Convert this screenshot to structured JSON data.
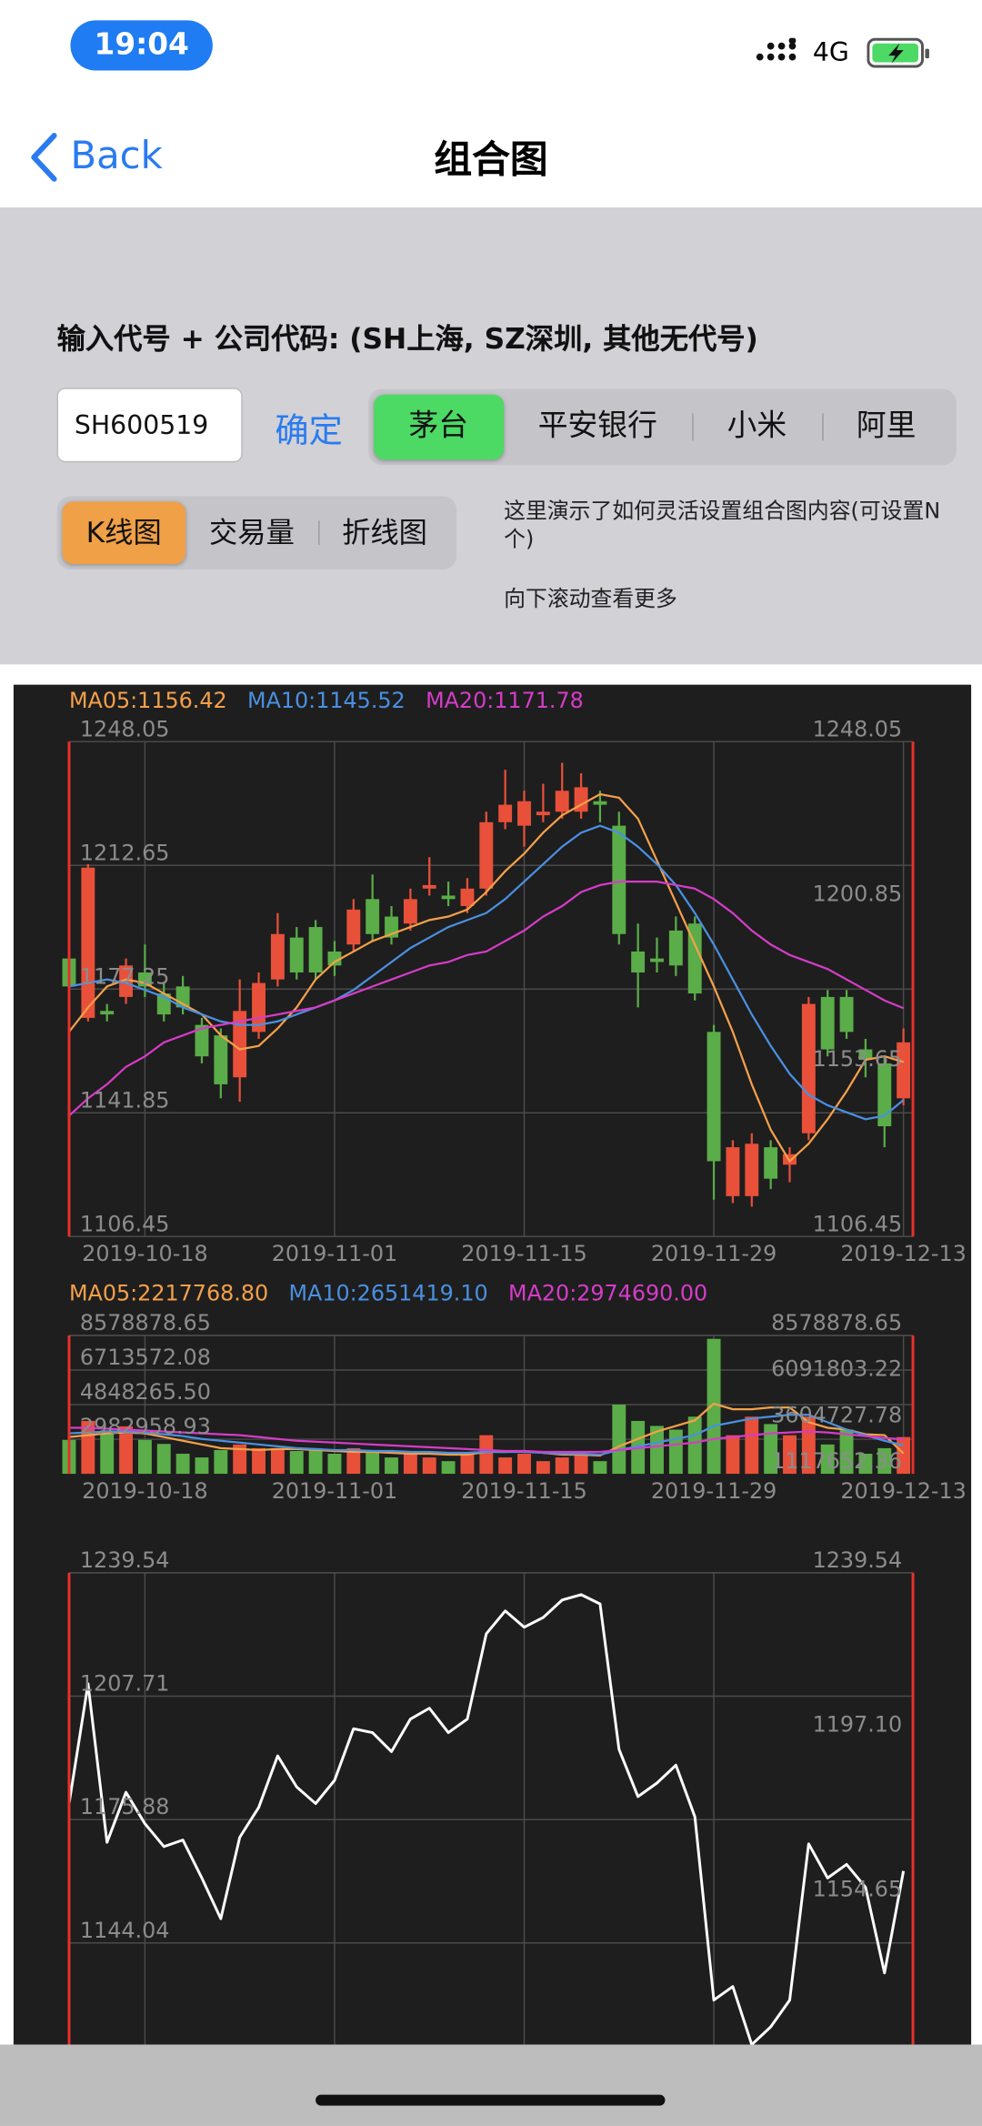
{
  "ui": {
    "status_bar": {
      "time": "19:04",
      "network": "4G"
    },
    "nav": {
      "back": "Back",
      "title": "组合图"
    },
    "prompt": "输入代号 + 公司代码: (SH上海, SZ深圳, 其他无代号)",
    "input": "SH600519",
    "confirm": "确定",
    "stocks": [
      "茅台",
      "平安银行",
      "小米",
      "阿里"
    ],
    "selected_stock": 0,
    "selected_stock_color": "#4cd964",
    "views": [
      "K线图",
      "交易量",
      "折线图"
    ],
    "selected_view": 0,
    "selected_view_color": "#f0a046",
    "note": "这里演示了如何灵活设置组合图内容(可设置N个)",
    "more": "向下滚动查看更多"
  },
  "chart_data": [
    {
      "type": "candlestick",
      "up_color": "#e8503a",
      "down_color": "#5aad48",
      "grid": true,
      "x": [
        null,
        null,
        null,
        null,
        "2019-10-18",
        null,
        null,
        null,
        null,
        null,
        null,
        null,
        null,
        null,
        "2019-11-01",
        null,
        null,
        null,
        null,
        null,
        null,
        null,
        null,
        null,
        "2019-11-15",
        null,
        null,
        null,
        null,
        null,
        null,
        null,
        null,
        null,
        "2019-11-29",
        null,
        null,
        null,
        null,
        null,
        null,
        null,
        null,
        null,
        "2019-12-13"
      ],
      "open": [
        1186,
        1169,
        1171,
        1175,
        1182,
        1176,
        1178,
        1167,
        1164,
        1152,
        1165,
        1180,
        1192,
        1195,
        1188,
        1190,
        1203,
        1198,
        1196,
        1206,
        1204,
        1201,
        1206,
        1225,
        1224,
        1227,
        1228,
        1228,
        1231,
        1224,
        1188,
        1186,
        1194,
        1196,
        1165,
        1118,
        1118,
        1132,
        1127,
        1136,
        1175,
        1175,
        1160,
        1156,
        1146
      ],
      "high": [
        1189,
        1213,
        1173,
        1186,
        1190,
        1179,
        1181,
        1169,
        1166,
        1180,
        1182,
        1199,
        1195,
        1197,
        1191,
        1203,
        1210,
        1201,
        1206,
        1215,
        1208,
        1209,
        1228,
        1240,
        1234,
        1236,
        1242,
        1239,
        1234,
        1228,
        1196,
        1192,
        1198,
        1198,
        1167,
        1134,
        1136,
        1134,
        1132,
        1175,
        1177,
        1177,
        1163,
        1158,
        1166
      ],
      "low": [
        1176,
        1168,
        1168,
        1173,
        1175,
        1168,
        1170,
        1156,
        1146,
        1145,
        1163,
        1178,
        1180,
        1180,
        1181,
        1188,
        1191,
        1190,
        1194,
        1204,
        1201,
        1199,
        1204,
        1223,
        1218,
        1225,
        1226,
        1226,
        1225,
        1190,
        1172,
        1182,
        1181,
        1174,
        1117,
        1116,
        1115,
        1120,
        1122,
        1134,
        1158,
        1163,
        1152,
        1132,
        1144
      ],
      "close": [
        1178,
        1212,
        1170,
        1184,
        1178,
        1170,
        1172,
        1158,
        1150,
        1171,
        1179,
        1193,
        1182,
        1182,
        1184,
        1200,
        1193,
        1192,
        1203,
        1207,
        1203,
        1206,
        1225,
        1230,
        1231,
        1228,
        1234,
        1235,
        1230,
        1193,
        1182,
        1185,
        1184,
        1176,
        1128,
        1132,
        1133,
        1123,
        1130,
        1173,
        1160,
        1165,
        1157,
        1138,
        1162
      ],
      "series": [
        {
          "name": "MA05:1156.42",
          "color": "#f5a04a",
          "values": [
            1165,
            1172,
            1178,
            1180,
            1179,
            1176,
            1173,
            1170,
            1164,
            1160,
            1161,
            1166,
            1172,
            1180,
            1185,
            1188,
            1191,
            1193,
            1195,
            1197,
            1198,
            1200,
            1205,
            1211,
            1216,
            1222,
            1227,
            1230,
            1233,
            1232,
            1226,
            1214,
            1202,
            1190,
            1178,
            1165,
            1150,
            1137,
            1128,
            1133,
            1140,
            1148,
            1157,
            1158,
            1156.42
          ]
        },
        {
          "name": "MA10:1145.52",
          "color": "#4a90e2",
          "values": [
            1178,
            1179,
            1180,
            1179,
            1177,
            1175,
            1172,
            1170,
            1168,
            1167,
            1167,
            1168,
            1170,
            1172,
            1174,
            1177,
            1181,
            1185,
            1189,
            1192,
            1195,
            1197,
            1199,
            1203,
            1208,
            1213,
            1218,
            1222,
            1224,
            1222,
            1218,
            1213,
            1207,
            1199,
            1190,
            1180,
            1170,
            1161,
            1153,
            1147,
            1144,
            1142,
            1140,
            1141,
            1145.52
          ]
        },
        {
          "name": "MA20:1171.78",
          "color": "#d63cc8",
          "values": [
            1141,
            1146,
            1150,
            1155,
            1158,
            1162,
            1164,
            1166,
            1167,
            1168,
            1169,
            1170,
            1171,
            1172,
            1174,
            1176,
            1178,
            1180,
            1182,
            1184,
            1185,
            1187,
            1188,
            1191,
            1194,
            1198,
            1201,
            1205,
            1207,
            1208,
            1208,
            1208,
            1207,
            1206,
            1203,
            1199,
            1194,
            1190,
            1187,
            1185,
            1183,
            1180,
            1177,
            1174,
            1171.78
          ]
        }
      ],
      "ylim": [
        1106.45,
        1248.05
      ],
      "yticks": [
        1106.45,
        1141.85,
        1177.25,
        1212.65,
        1248.05
      ],
      "y2lim": [
        1106.45,
        1248.05
      ],
      "y2ticks": [
        1106.45,
        1153.65,
        1200.85,
        1248.05
      ]
    },
    {
      "type": "bar",
      "grid": true,
      "x": [
        null,
        null,
        null,
        null,
        "2019-10-18",
        null,
        null,
        null,
        null,
        null,
        null,
        null,
        null,
        null,
        "2019-11-01",
        null,
        null,
        null,
        null,
        null,
        null,
        null,
        null,
        null,
        "2019-11-15",
        null,
        null,
        null,
        null,
        null,
        null,
        null,
        null,
        null,
        "2019-11-29",
        null,
        null,
        null,
        null,
        null,
        null,
        null,
        null,
        null,
        "2019-12-13"
      ],
      "values": [
        2950000,
        3970000,
        3460000,
        3680000,
        2950000,
        2730000,
        2200000,
        2000000,
        2400000,
        2700000,
        2500000,
        2500000,
        2350000,
        2500000,
        2200000,
        2500000,
        2350000,
        2000000,
        2200000,
        2000000,
        1800000,
        2200000,
        3200000,
        2000000,
        2200000,
        1800000,
        2000000,
        2200000,
        1800000,
        4850000,
        3970000,
        3700000,
        3500000,
        4200000,
        8400000,
        3200000,
        4200000,
        3800000,
        3200000,
        4200000,
        2700000,
        3500000,
        2200000,
        2500000,
        3100000
      ],
      "series": [
        {
          "name": "MA05:2217768.80",
          "color": "#f5a04a",
          "values": [
            3100000,
            3200000,
            3300000,
            3350000,
            3300000,
            3100000,
            2900000,
            2700000,
            2500000,
            2450000,
            2400000,
            2450000,
            2450000,
            2400000,
            2350000,
            2300000,
            2300000,
            2250000,
            2200000,
            2200000,
            2150000,
            2150000,
            2300000,
            2300000,
            2350000,
            2250000,
            2150000,
            2150000,
            2100000,
            2600000,
            3000000,
            3400000,
            3700000,
            4000000,
            4900000,
            4600000,
            4600000,
            4700000,
            4700000,
            3900000,
            3600000,
            3500000,
            3250000,
            3200000,
            2217768.8
          ]
        },
        {
          "name": "MA10:2651419.10",
          "color": "#4a90e2",
          "values": [
            3300000,
            3350000,
            3400000,
            3400000,
            3350000,
            3250000,
            3150000,
            3000000,
            2900000,
            2800000,
            2700000,
            2600000,
            2500000,
            2450000,
            2400000,
            2400000,
            2350000,
            2350000,
            2300000,
            2300000,
            2250000,
            2250000,
            2300000,
            2300000,
            2300000,
            2250000,
            2200000,
            2200000,
            2150000,
            2400000,
            2600000,
            2800000,
            3000000,
            3200000,
            3700000,
            3900000,
            4100000,
            4200000,
            4300000,
            4300000,
            3900000,
            3500000,
            3200000,
            2900000,
            2651419.1
          ]
        },
        {
          "name": "MA20:2974690.00",
          "color": "#d63cc8",
          "values": [
            3600000,
            3600000,
            3550000,
            3500000,
            3450000,
            3400000,
            3350000,
            3300000,
            3250000,
            3200000,
            3100000,
            3000000,
            2900000,
            2850000,
            2800000,
            2750000,
            2700000,
            2650000,
            2600000,
            2550000,
            2500000,
            2450000,
            2400000,
            2350000,
            2350000,
            2300000,
            2300000,
            2300000,
            2300000,
            2400000,
            2500000,
            2600000,
            2700000,
            2800000,
            3000000,
            3100000,
            3200000,
            3300000,
            3350000,
            3400000,
            3350000,
            3250000,
            3150000,
            3050000,
            2974690
          ]
        }
      ],
      "ylim": [
        1117652.36,
        8578878.65
      ],
      "yticks": [
        2982958.93,
        {
          "value": 4848265.5,
          "label": "4848265.50"
        },
        6713572.08,
        8578878.65
      ],
      "y2lim": [
        1117652.36,
        8578878.65
      ],
      "y2ticks": [
        1117652.36,
        3604727.78,
        6091803.22,
        8578878.65
      ]
    },
    {
      "type": "line",
      "grid": true,
      "color": "#ffffff",
      "values": [
        1180,
        1210.9,
        1170,
        1182.9,
        1174.8,
        1168.9,
        1170.6,
        1160.8,
        1150.3,
        1171.3,
        1179,
        1192.3,
        1184.3,
        1180,
        1186,
        1199.3,
        1198.3,
        1193.4,
        1201.8,
        1204.6,
        1198.3,
        1201.8,
        1223.8,
        1229.7,
        1225.5,
        1228,
        1232.5,
        1233.9,
        1231.5,
        1194,
        1181.8,
        1185.3,
        1189.9,
        1176.6,
        1129.3,
        1132.8,
        1117.8,
        1122.4,
        1129.3,
        1169.6,
        1160.8,
        1164.3,
        1158.4,
        1136.3,
        1162.6
      ],
      "ylim": [
        1112.22,
        1239.54
      ],
      "yticks": [
        1144.04,
        1175.88,
        1207.71,
        1239.54
      ],
      "y2lim": [
        1112.22,
        1239.54
      ],
      "y2ticks": [
        1154.65,
        {
          "value": 1197.1,
          "label": "1197.10"
        },
        1239.54
      ]
    }
  ]
}
